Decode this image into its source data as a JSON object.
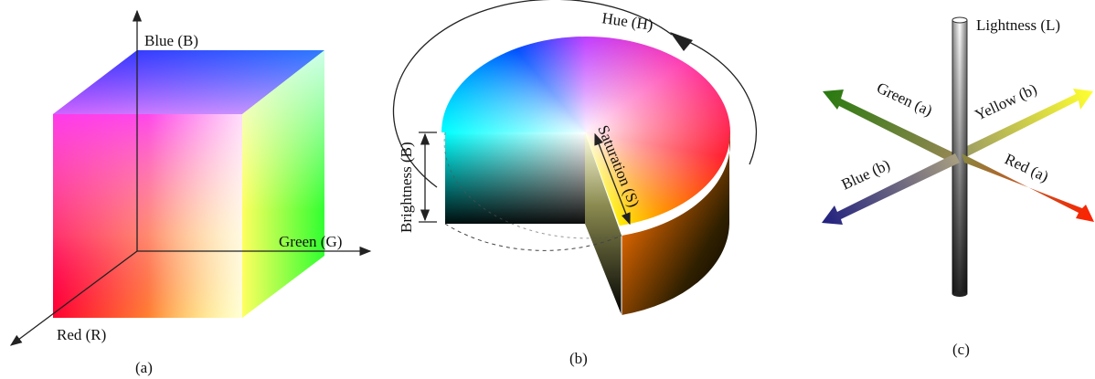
{
  "panels": [
    {
      "caption": "(a)",
      "labels": [
        "Blue (B)",
        "Green (G)",
        "Red (R)"
      ]
    },
    {
      "caption": "(b)",
      "labels": [
        "Hue (H)",
        "Saturation (S)",
        "Brightness (B)"
      ]
    },
    {
      "caption": "(c)",
      "labels": [
        "Lightness (L)",
        "Green (a)",
        "Yellow (b)",
        "Blue (b)",
        "Red (a)"
      ]
    }
  ]
}
